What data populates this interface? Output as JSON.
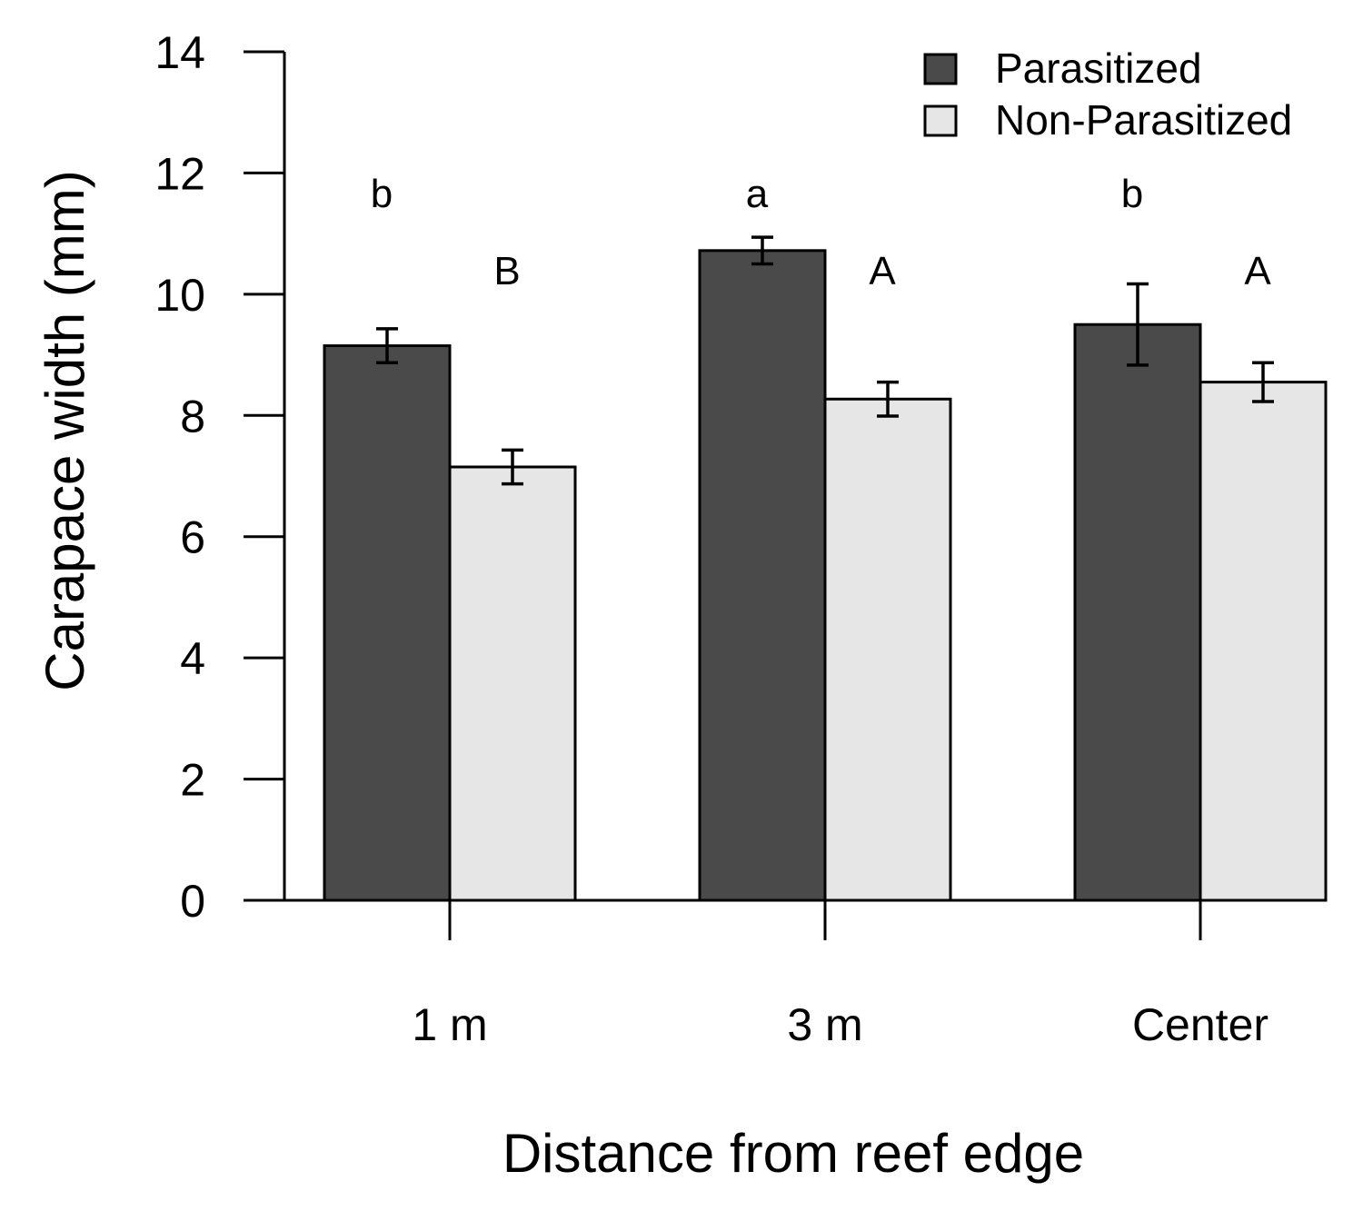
{
  "chart_data": {
    "type": "bar",
    "title": "",
    "xlabel": "Distance from reef edge",
    "ylabel": "Carapace width (mm)",
    "ylim": [
      0,
      14
    ],
    "yticks": [
      0,
      2,
      4,
      6,
      8,
      10,
      12,
      14
    ],
    "categories": [
      "1 m",
      "3 m",
      "Center"
    ],
    "series": [
      {
        "name": "Parasitized",
        "color": "#4a4a4a",
        "values": [
          9.15,
          10.72,
          9.5
        ],
        "errors": [
          0.28,
          0.22,
          0.67
        ],
        "letters": [
          "b",
          "a",
          "b"
        ]
      },
      {
        "name": "Non-Parasitized",
        "color": "#e6e6e6",
        "values": [
          7.15,
          8.27,
          8.55
        ],
        "errors": [
          0.28,
          0.28,
          0.32
        ],
        "letters": [
          "B",
          "A",
          "A"
        ]
      }
    ],
    "legend_position": "top-right",
    "grid": false
  }
}
